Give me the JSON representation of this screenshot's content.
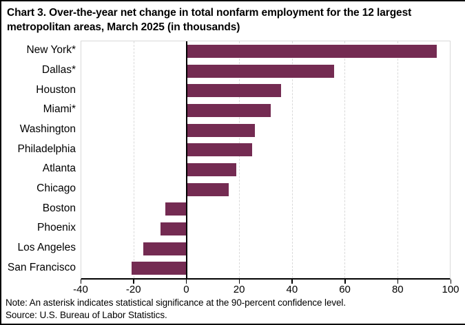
{
  "chart_data": {
    "type": "bar",
    "orientation": "horizontal",
    "title": "Chart 3. Over-the-year net change in total nonfarm employment for the 12 largest metropolitan areas, March 2025 (in thousands)",
    "categories": [
      "New York*",
      "Dallas*",
      "Houston",
      "Miami*",
      "Washington",
      "Philadelphia",
      "Atlanta",
      "Chicago",
      "Boston",
      "Phoenix",
      "Los Angeles",
      "San Francisco"
    ],
    "values": [
      95,
      56,
      36,
      32,
      26,
      25,
      19,
      16,
      -8,
      -10,
      -16.5,
      -21
    ],
    "xlabel": "",
    "ylabel": "",
    "xlim": [
      -40,
      100
    ],
    "x_ticks": [
      -40,
      -20,
      0,
      20,
      40,
      60,
      80,
      100
    ],
    "grid": "vertical-dashed",
    "legend": "none",
    "bar_color": "#742b52",
    "gridline_color": "#d9d9d9",
    "axis_color": "#000000",
    "note": "Note: An asterisk indicates statistical significance at the 90-percent confidence level.",
    "source": "Source: U.S. Bureau of Labor Statistics."
  }
}
